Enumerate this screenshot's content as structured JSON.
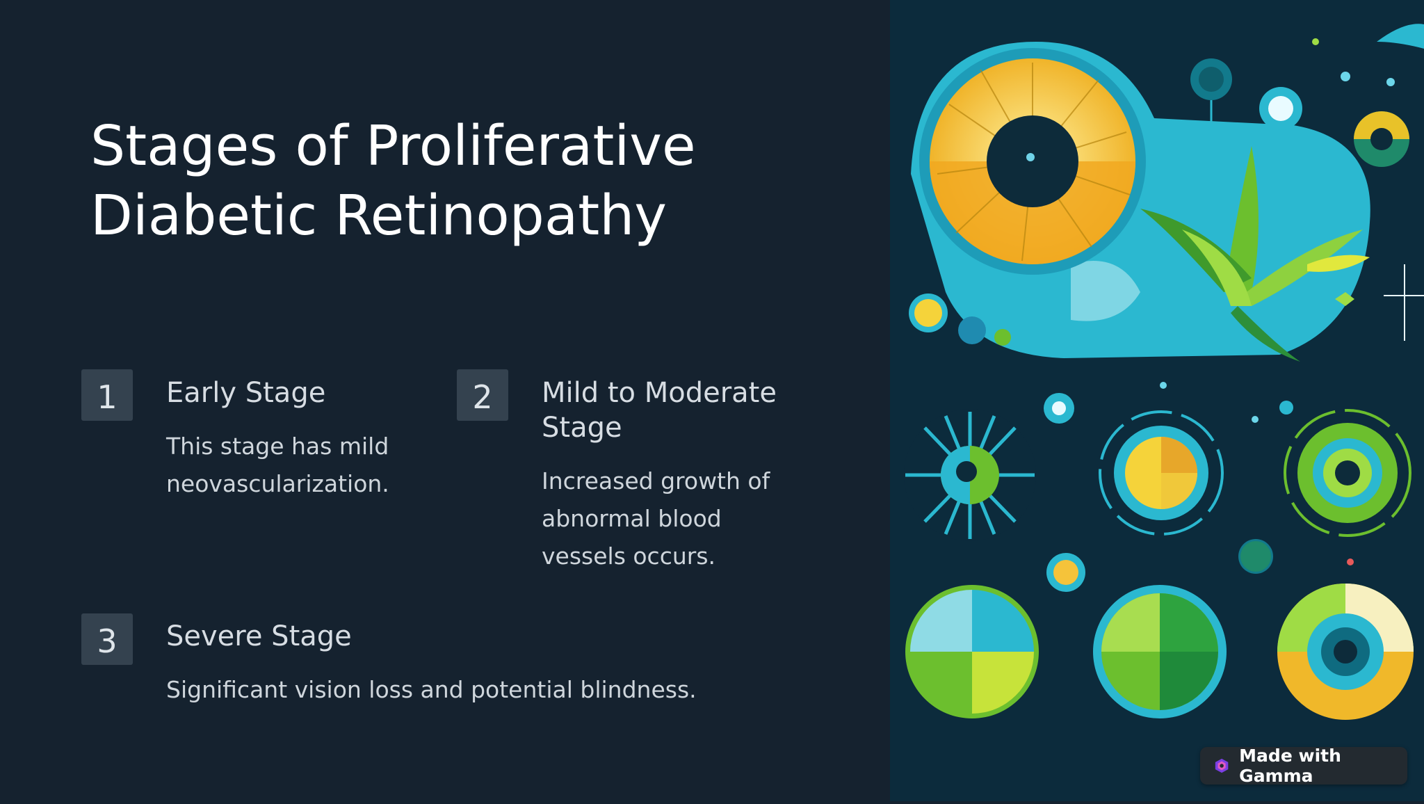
{
  "slide": {
    "title": "Stages of Proliferative Diabetic Retinopathy"
  },
  "steps": [
    {
      "number": "1",
      "title": "Early Stage",
      "body": "This stage has mild neovascularization."
    },
    {
      "number": "2",
      "title": "Mild to Moderate Stage",
      "body": "Increased growth of abnormal blood vessels occurs."
    },
    {
      "number": "3",
      "title": "Severe Stage",
      "body": "Significant vision loss and potential blindness."
    }
  ],
  "illustration": {
    "icon": "retina-illustration",
    "colors": {
      "background": "#0c2b3c",
      "cyan": "#2bb8d0",
      "yellow": "#f5d33a",
      "green": "#6cbf2e"
    }
  },
  "badge": {
    "label": "Made with Gamma",
    "icon": "gamma-logo-icon"
  },
  "colors": {
    "background": "#15222f",
    "number_box": "#34424f",
    "title": "#ffffff",
    "text": "#cfd6dc"
  }
}
